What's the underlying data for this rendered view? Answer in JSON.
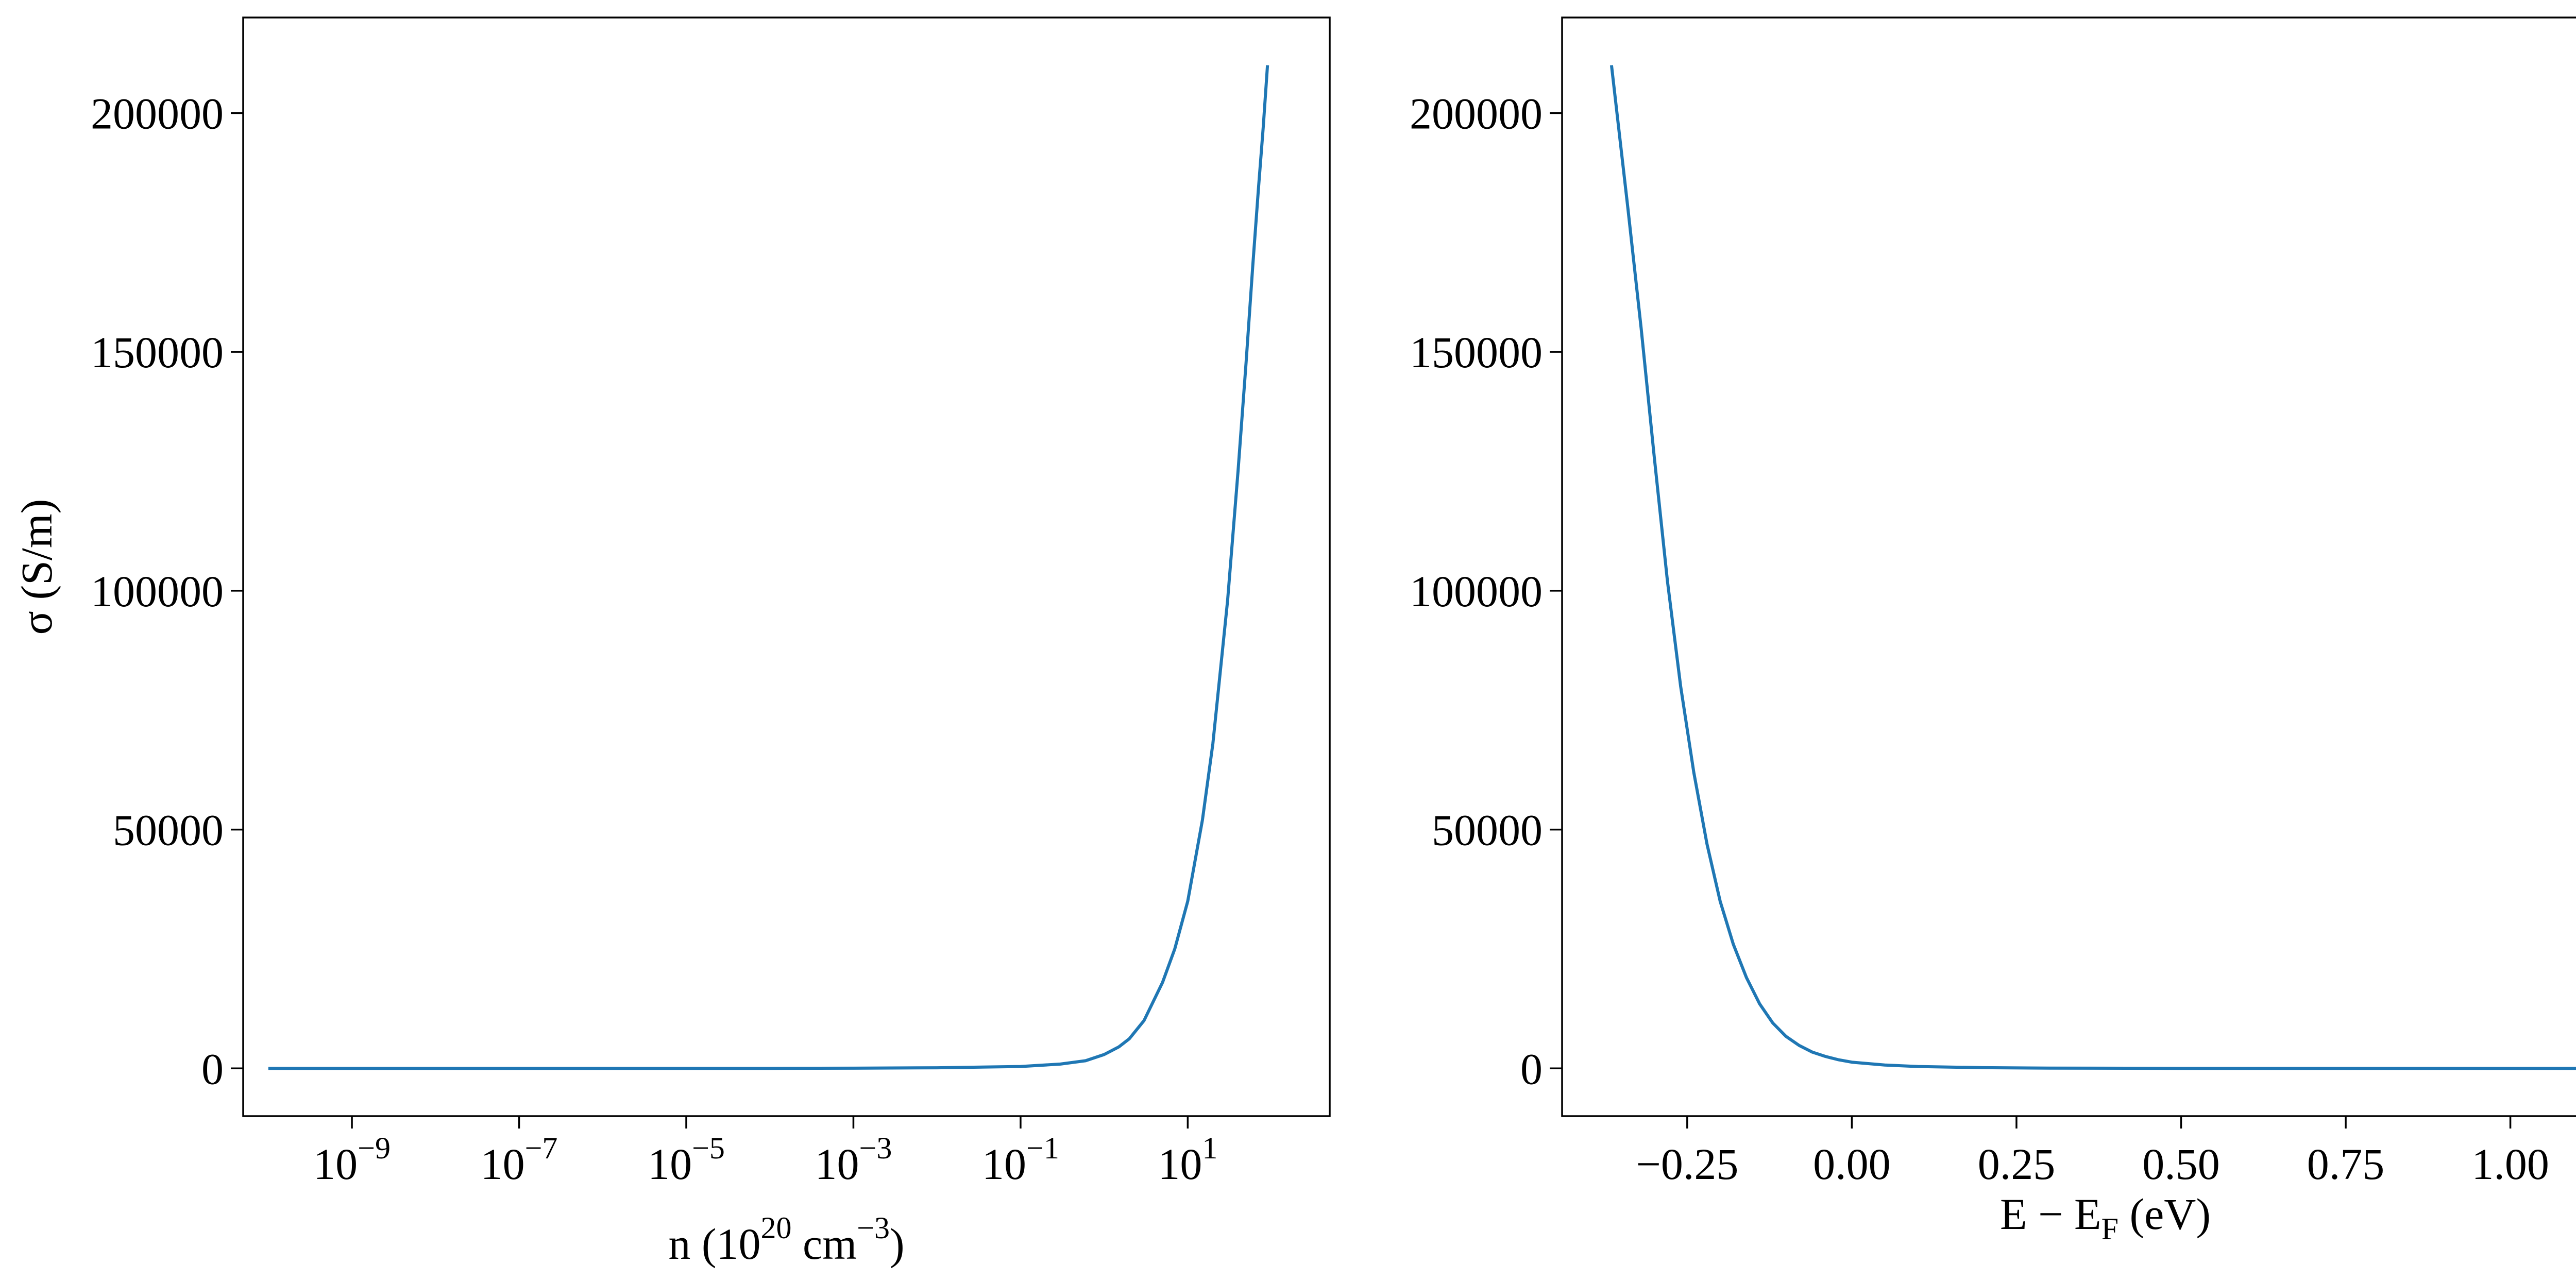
{
  "chart_data": [
    {
      "type": "line",
      "xscale": "log",
      "xlabel": "n (10^20 cm^-3)",
      "xlabel_parts": {
        "main": "n (10",
        "exp1": "20",
        "mid": " cm",
        "exp2": "−3",
        "tail": ")"
      },
      "ylabel": "σ (S/m)",
      "xlim": [
        5e-11,
        500
      ],
      "ylim": [
        -10000,
        220000
      ],
      "x_ticks": [
        {
          "value": 1e-09,
          "base": "10",
          "exp": "−9"
        },
        {
          "value": 1e-07,
          "base": "10",
          "exp": "−7"
        },
        {
          "value": 1e-05,
          "base": "10",
          "exp": "−5"
        },
        {
          "value": 0.001,
          "base": "10",
          "exp": "−3"
        },
        {
          "value": 0.1,
          "base": "10",
          "exp": "−1"
        },
        {
          "value": 10,
          "base": "10",
          "exp": "1"
        }
      ],
      "y_ticks": [
        {
          "value": 0,
          "label": "0"
        },
        {
          "value": 50000,
          "label": "50000"
        },
        {
          "value": 100000,
          "label": "100000"
        },
        {
          "value": 150000,
          "label": "150000"
        },
        {
          "value": 200000,
          "label": "200000"
        }
      ],
      "grid": false,
      "series": [
        {
          "color": "#1f77b4",
          "x": [
            1e-10,
            1e-08,
            1e-06,
            0.0001,
            0.001,
            0.01,
            0.1,
            0.3,
            0.6,
            1,
            1.5,
            2,
            3,
            5,
            7,
            10,
            15,
            20,
            30,
            40,
            50,
            60,
            70,
            80,
            90
          ],
          "y": [
            0,
            0,
            0,
            10,
            40,
            120,
            400,
            900,
            1600,
            2900,
            4500,
            6200,
            10000,
            18000,
            25000,
            35000,
            52000,
            68000,
            98000,
            125000,
            148000,
            168000,
            184000,
            197000,
            210000
          ]
        }
      ]
    },
    {
      "type": "line",
      "xscale": "linear",
      "xlabel": "E − E_F (eV)",
      "xlabel_parts": {
        "main": "E − E",
        "sub": "F",
        "tail": " (eV)"
      },
      "xlim": [
        -0.44,
        1.21
      ],
      "ylim": [
        -10000,
        220000
      ],
      "x_ticks": [
        {
          "value": -0.25,
          "label": "−0.25"
        },
        {
          "value": 0.0,
          "label": "0.00"
        },
        {
          "value": 0.25,
          "label": "0.25"
        },
        {
          "value": 0.5,
          "label": "0.50"
        },
        {
          "value": 0.75,
          "label": "0.75"
        },
        {
          "value": 1.0,
          "label": "1.00"
        }
      ],
      "y_ticks": [
        {
          "value": 0,
          "label": "0"
        },
        {
          "value": 50000,
          "label": "50000"
        },
        {
          "value": 100000,
          "label": "100000"
        },
        {
          "value": 150000,
          "label": "150000"
        },
        {
          "value": 200000,
          "label": "200000"
        }
      ],
      "grid": false,
      "series": [
        {
          "color": "#1f77b4",
          "x": [
            -0.365,
            -0.34,
            -0.32,
            -0.3,
            -0.28,
            -0.26,
            -0.24,
            -0.22,
            -0.2,
            -0.18,
            -0.16,
            -0.14,
            -0.12,
            -0.1,
            -0.08,
            -0.06,
            -0.04,
            -0.02,
            0.0,
            0.05,
            0.1,
            0.2,
            0.3,
            0.5,
            0.75,
            1.0,
            1.14
          ],
          "y": [
            210000,
            180000,
            155000,
            128000,
            102000,
            80000,
            62000,
            47000,
            35000,
            26000,
            19000,
            13500,
            9500,
            6700,
            4800,
            3400,
            2500,
            1800,
            1300,
            700,
            400,
            150,
            60,
            10,
            0,
            0,
            0
          ]
        }
      ]
    }
  ]
}
